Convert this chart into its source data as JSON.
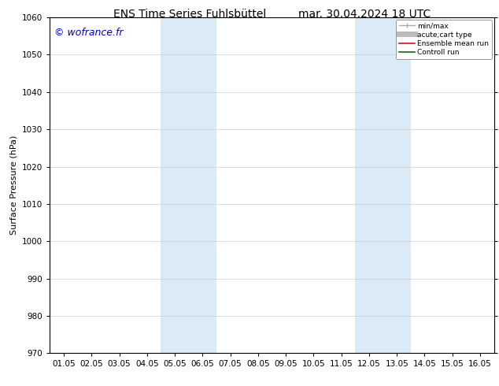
{
  "title_left": "ENS Time Series Fuhlsbüttel",
  "title_right": "mar. 30.04.2024 18 UTC",
  "ylabel": "Surface Pressure (hPa)",
  "ylim": [
    970,
    1060
  ],
  "yticks": [
    970,
    980,
    990,
    1000,
    1010,
    1020,
    1030,
    1040,
    1050,
    1060
  ],
  "xtick_labels": [
    "01.05",
    "02.05",
    "03.05",
    "04.05",
    "05.05",
    "06.05",
    "07.05",
    "08.05",
    "09.05",
    "10.05",
    "11.05",
    "12.05",
    "13.05",
    "14.05",
    "15.05",
    "16.05"
  ],
  "xtick_positions": [
    0,
    1,
    2,
    3,
    4,
    5,
    6,
    7,
    8,
    9,
    10,
    11,
    12,
    13,
    14,
    15
  ],
  "shaded_bands": [
    {
      "x_start": 3.5,
      "x_end": 5.5,
      "color": "#daeaf7"
    },
    {
      "x_start": 10.5,
      "x_end": 12.5,
      "color": "#daeaf7"
    }
  ],
  "watermark": "© wofrance.fr",
  "watermark_color": "#0000cc",
  "background_color": "#ffffff",
  "legend_entries": [
    {
      "label": "min/max",
      "color": "#aaaaaa",
      "lw": 1.0
    },
    {
      "label": "acute;cart type",
      "color": "#bbbbbb",
      "lw": 5
    },
    {
      "label": "Ensemble mean run",
      "color": "#ff0000",
      "lw": 1.2
    },
    {
      "label": "Controll run",
      "color": "#007700",
      "lw": 1.2
    }
  ],
  "grid_color": "#cccccc",
  "spine_color": "#000000",
  "title_fontsize": 10,
  "tick_fontsize": 7.5,
  "ylabel_fontsize": 8,
  "watermark_fontsize": 9
}
